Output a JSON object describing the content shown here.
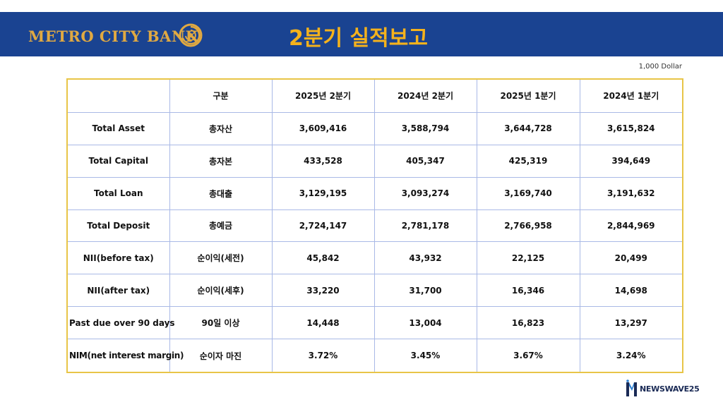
{
  "header": {
    "logo_text": "METRO CITY BANK",
    "title": "2분기 실적보고",
    "background_color": "#1a4391",
    "title_color": "#f5b21c",
    "logo_color": "#e0a942"
  },
  "unit_label": "1,000 Dollar",
  "table": {
    "border_color": "#e8c547",
    "grid_color": "#a9b9e6",
    "header": [
      "",
      "구분",
      "2025년 2분기",
      "2024년 2분기",
      "2025년 1분기",
      "2024년 1분기"
    ],
    "rows": [
      {
        "en": "Total Asset",
        "ko": "총자산",
        "values": [
          "3,609,416",
          "3,588,794",
          "3,644,728",
          "3,615,824"
        ]
      },
      {
        "en": "Total Capital",
        "ko": "총자본",
        "values": [
          "433,528",
          "405,347",
          "425,319",
          "394,649"
        ]
      },
      {
        "en": "Total Loan",
        "ko": "총대출",
        "values": [
          "3,129,195",
          "3,093,274",
          "3,169,740",
          "3,191,632"
        ]
      },
      {
        "en": "Total Deposit",
        "ko": "총예금",
        "values": [
          "2,724,147",
          "2,781,178",
          "2,766,958",
          "2,844,969"
        ]
      },
      {
        "en": "NII(before tax)",
        "ko": "순이익(세전)",
        "values": [
          "45,842",
          "43,932",
          "22,125",
          "20,499"
        ]
      },
      {
        "en": "NII(after tax)",
        "ko": "순이익(세후)",
        "values": [
          "33,220",
          "31,700",
          "16,346",
          "14,698"
        ]
      },
      {
        "en": "Past due over 90 days",
        "ko": "90일 이상",
        "values": [
          "14,448",
          "13,004",
          "16,823",
          "13,297"
        ]
      },
      {
        "en": "NIM(net interest margin)",
        "ko": "순이자 마진",
        "values": [
          "3.72%",
          "3.45%",
          "3.67%",
          "3.24%"
        ]
      }
    ]
  },
  "watermark": {
    "text": "NEWSWAVE25",
    "icon": "newswave-logo-icon"
  },
  "icons": {
    "logo_mark": "gold-ring-logo-icon"
  }
}
